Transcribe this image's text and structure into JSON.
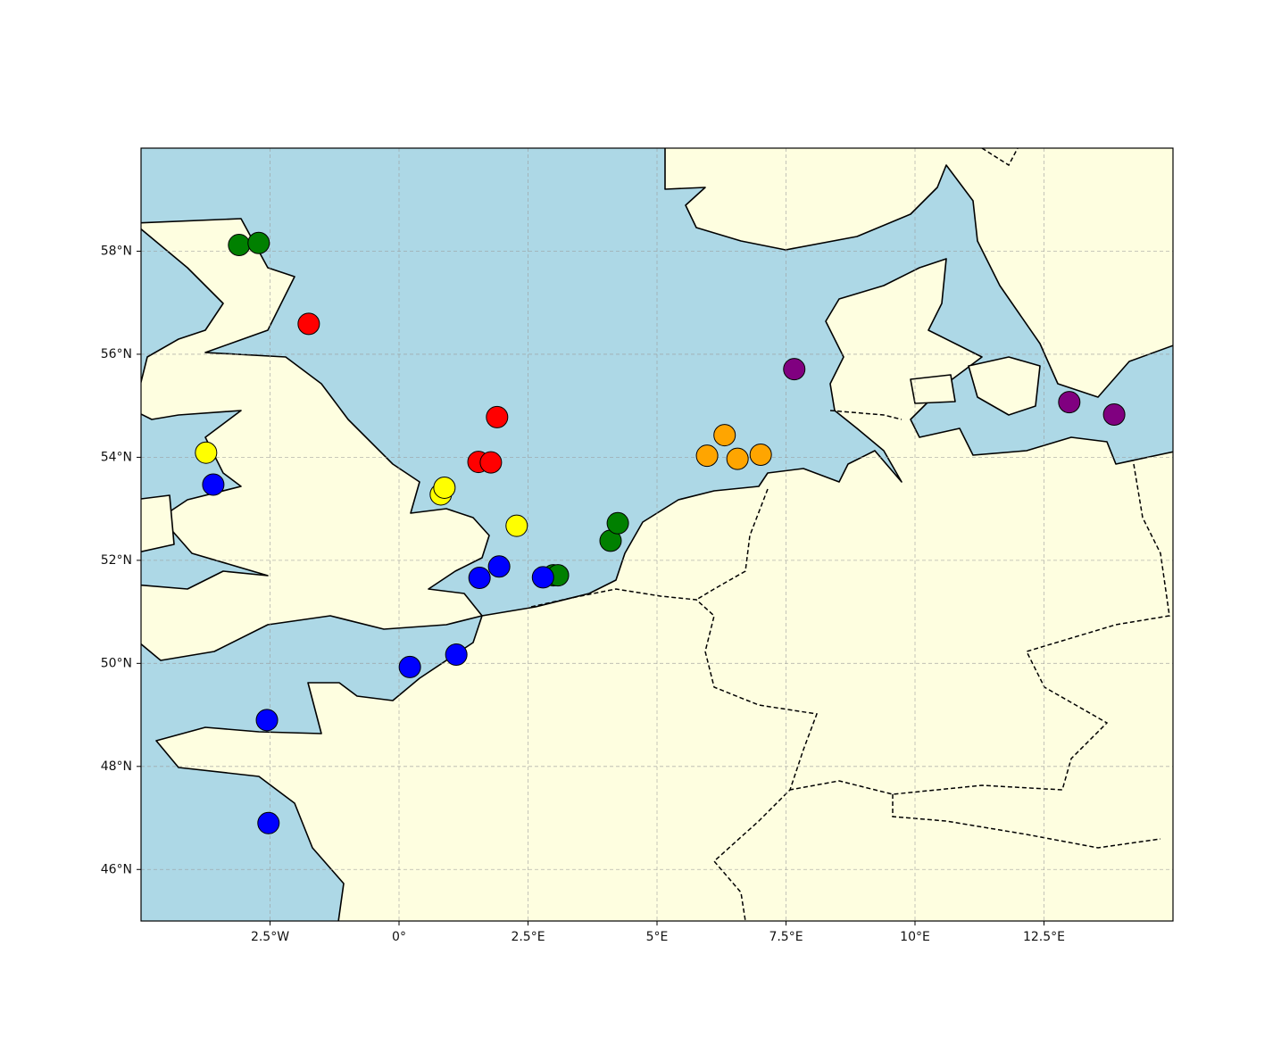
{
  "chart_data": {
    "type": "scatter",
    "xlim": [
      -5,
      15
    ],
    "ylim": [
      45,
      60
    ],
    "xticks": [
      {
        "value": -2.5,
        "label": "2.5°W"
      },
      {
        "value": 0,
        "label": "0°"
      },
      {
        "value": 2.5,
        "label": "2.5°E"
      },
      {
        "value": 5,
        "label": "5°E"
      },
      {
        "value": 7.5,
        "label": "7.5°E"
      },
      {
        "value": 10,
        "label": "10°E"
      },
      {
        "value": 12.5,
        "label": "12.5°E"
      }
    ],
    "yticks": [
      {
        "value": 46,
        "label": "46°N"
      },
      {
        "value": 48,
        "label": "48°N"
      },
      {
        "value": 50,
        "label": "50°N"
      },
      {
        "value": 52,
        "label": "52°N"
      },
      {
        "value": 54,
        "label": "54°N"
      },
      {
        "value": 56,
        "label": "56°N"
      },
      {
        "value": 58,
        "label": "58°N"
      }
    ],
    "grid": true,
    "series": [
      {
        "color": "green",
        "x": [
          -3.1,
          -2.72,
          2.99,
          3.08,
          4.1,
          4.24
        ],
        "values": [
          58.12,
          58.16,
          51.71,
          51.71,
          52.38,
          52.72
        ]
      },
      {
        "color": "red",
        "x": [
          -1.75,
          1.9,
          1.54,
          1.78
        ],
        "values": [
          56.59,
          54.78,
          53.91,
          53.9
        ]
      },
      {
        "color": "yellow",
        "x": [
          -3.74,
          0.81,
          0.88,
          2.28
        ],
        "values": [
          54.09,
          53.28,
          53.41,
          52.67
        ]
      },
      {
        "color": "blue",
        "x": [
          -3.6,
          1.56,
          1.94,
          2.79,
          0.21,
          1.11,
          -2.56,
          -2.53
        ],
        "values": [
          53.47,
          51.66,
          51.88,
          51.67,
          49.93,
          50.17,
          48.9,
          46.9
        ]
      },
      {
        "color": "orange",
        "x": [
          5.97,
          6.31,
          6.56,
          7.01
        ],
        "values": [
          54.03,
          54.43,
          53.97,
          54.05
        ]
      },
      {
        "color": "purple",
        "x": [
          7.66,
          12.99,
          13.86
        ],
        "values": [
          55.71,
          55.07,
          54.83
        ]
      }
    ]
  }
}
